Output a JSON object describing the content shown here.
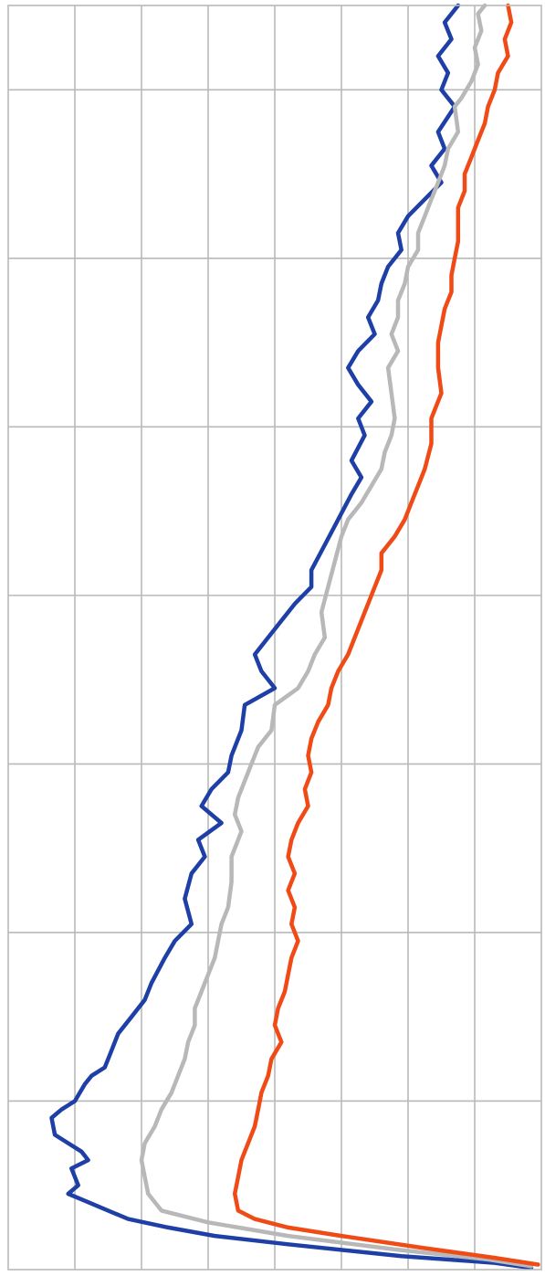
{
  "chart_data": {
    "type": "line",
    "orientation": "vertical-profile",
    "title": "",
    "xlabel": "",
    "ylabel": "",
    "grid": true,
    "legend": "none",
    "xlim": [
      0,
      8
    ],
    "ylim": [
      0,
      7.5
    ],
    "x_gridlines": 8,
    "y_gridlines": 7.5,
    "series": [
      {
        "color": "#1e3fa6",
        "points": [
          [
            6.75,
            0.0
          ],
          [
            6.55,
            0.1
          ],
          [
            6.65,
            0.2
          ],
          [
            6.45,
            0.3
          ],
          [
            6.6,
            0.4
          ],
          [
            6.5,
            0.5
          ],
          [
            6.7,
            0.6
          ],
          [
            6.45,
            0.75
          ],
          [
            6.55,
            0.85
          ],
          [
            6.35,
            0.95
          ],
          [
            6.5,
            1.05
          ],
          [
            6.25,
            1.15
          ],
          [
            6.0,
            1.25
          ],
          [
            5.85,
            1.35
          ],
          [
            5.9,
            1.45
          ],
          [
            5.7,
            1.55
          ],
          [
            5.6,
            1.65
          ],
          [
            5.55,
            1.75
          ],
          [
            5.4,
            1.85
          ],
          [
            5.5,
            1.95
          ],
          [
            5.25,
            2.05
          ],
          [
            5.1,
            2.15
          ],
          [
            5.25,
            2.25
          ],
          [
            5.45,
            2.35
          ],
          [
            5.25,
            2.45
          ],
          [
            5.35,
            2.55
          ],
          [
            5.15,
            2.7
          ],
          [
            5.3,
            2.8
          ],
          [
            5.15,
            2.9
          ],
          [
            4.95,
            3.05
          ],
          [
            4.75,
            3.2
          ],
          [
            4.55,
            3.35
          ],
          [
            4.55,
            3.45
          ],
          [
            4.3,
            3.55
          ],
          [
            4.1,
            3.65
          ],
          [
            3.9,
            3.75
          ],
          [
            3.7,
            3.85
          ],
          [
            3.8,
            3.95
          ],
          [
            4.0,
            4.05
          ],
          [
            3.55,
            4.15
          ],
          [
            3.5,
            4.3
          ],
          [
            3.35,
            4.45
          ],
          [
            3.3,
            4.55
          ],
          [
            3.05,
            4.65
          ],
          [
            2.9,
            4.75
          ],
          [
            3.2,
            4.85
          ],
          [
            2.85,
            4.95
          ],
          [
            2.95,
            5.05
          ],
          [
            2.75,
            5.15
          ],
          [
            2.65,
            5.3
          ],
          [
            2.75,
            5.45
          ],
          [
            2.5,
            5.55
          ],
          [
            2.35,
            5.65
          ],
          [
            2.15,
            5.8
          ],
          [
            2.05,
            5.9
          ],
          [
            1.85,
            6.0
          ],
          [
            1.65,
            6.1
          ],
          [
            1.55,
            6.2
          ],
          [
            1.45,
            6.3
          ],
          [
            1.25,
            6.35
          ],
          [
            1.15,
            6.4
          ],
          [
            1.0,
            6.5
          ],
          [
            0.8,
            6.55
          ],
          [
            0.65,
            6.6
          ],
          [
            0.7,
            6.7
          ],
          [
            0.9,
            6.75
          ],
          [
            1.1,
            6.8
          ],
          [
            1.2,
            6.85
          ],
          [
            0.95,
            6.9
          ],
          [
            1.05,
            7.0
          ],
          [
            0.9,
            7.05
          ],
          [
            1.2,
            7.1
          ],
          [
            1.5,
            7.15
          ],
          [
            1.8,
            7.2
          ],
          [
            2.4,
            7.25
          ],
          [
            3.1,
            7.3
          ],
          [
            4.2,
            7.35
          ],
          [
            5.9,
            7.42
          ],
          [
            7.3,
            7.46
          ],
          [
            7.85,
            7.49
          ]
        ]
      },
      {
        "color": "#b8b8b8",
        "points": [
          [
            7.15,
            0.0
          ],
          [
            7.05,
            0.05
          ],
          [
            7.1,
            0.15
          ],
          [
            7.0,
            0.25
          ],
          [
            7.05,
            0.35
          ],
          [
            6.95,
            0.45
          ],
          [
            6.8,
            0.55
          ],
          [
            6.7,
            0.6
          ],
          [
            6.75,
            0.75
          ],
          [
            6.6,
            0.85
          ],
          [
            6.55,
            0.95
          ],
          [
            6.45,
            1.05
          ],
          [
            6.35,
            1.15
          ],
          [
            6.25,
            1.25
          ],
          [
            6.15,
            1.35
          ],
          [
            6.15,
            1.45
          ],
          [
            6.0,
            1.55
          ],
          [
            5.95,
            1.65
          ],
          [
            5.85,
            1.75
          ],
          [
            5.85,
            1.85
          ],
          [
            5.75,
            1.95
          ],
          [
            5.85,
            2.05
          ],
          [
            5.7,
            2.15
          ],
          [
            5.75,
            2.3
          ],
          [
            5.8,
            2.45
          ],
          [
            5.75,
            2.55
          ],
          [
            5.65,
            2.65
          ],
          [
            5.6,
            2.75
          ],
          [
            5.45,
            2.85
          ],
          [
            5.3,
            2.95
          ],
          [
            5.1,
            3.05
          ],
          [
            5.0,
            3.15
          ],
          [
            4.9,
            3.3
          ],
          [
            4.8,
            3.45
          ],
          [
            4.7,
            3.6
          ],
          [
            4.75,
            3.75
          ],
          [
            4.6,
            3.85
          ],
          [
            4.5,
            3.95
          ],
          [
            4.35,
            4.05
          ],
          [
            4.0,
            4.15
          ],
          [
            3.95,
            4.3
          ],
          [
            3.75,
            4.4
          ],
          [
            3.65,
            4.5
          ],
          [
            3.55,
            4.6
          ],
          [
            3.45,
            4.7
          ],
          [
            3.4,
            4.8
          ],
          [
            3.5,
            4.9
          ],
          [
            3.35,
            5.05
          ],
          [
            3.35,
            5.2
          ],
          [
            3.3,
            5.35
          ],
          [
            3.2,
            5.45
          ],
          [
            3.15,
            5.55
          ],
          [
            3.1,
            5.65
          ],
          [
            3.0,
            5.75
          ],
          [
            2.9,
            5.85
          ],
          [
            2.8,
            5.95
          ],
          [
            2.8,
            6.05
          ],
          [
            2.7,
            6.15
          ],
          [
            2.65,
            6.25
          ],
          [
            2.55,
            6.35
          ],
          [
            2.45,
            6.45
          ],
          [
            2.3,
            6.55
          ],
          [
            2.2,
            6.65
          ],
          [
            2.05,
            6.75
          ],
          [
            2.0,
            6.85
          ],
          [
            2.05,
            6.95
          ],
          [
            2.1,
            7.05
          ],
          [
            2.3,
            7.15
          ],
          [
            3.0,
            7.22
          ],
          [
            4.2,
            7.3
          ],
          [
            5.8,
            7.38
          ],
          [
            7.2,
            7.44
          ],
          [
            7.85,
            7.48
          ]
        ]
      },
      {
        "color": "#f04a16",
        "points": [
          [
            7.5,
            0.0
          ],
          [
            7.55,
            0.1
          ],
          [
            7.45,
            0.2
          ],
          [
            7.5,
            0.3
          ],
          [
            7.35,
            0.4
          ],
          [
            7.3,
            0.5
          ],
          [
            7.2,
            0.6
          ],
          [
            7.15,
            0.7
          ],
          [
            7.05,
            0.8
          ],
          [
            6.95,
            0.9
          ],
          [
            6.85,
            1.0
          ],
          [
            6.85,
            1.1
          ],
          [
            6.75,
            1.2
          ],
          [
            6.75,
            1.3
          ],
          [
            6.75,
            1.4
          ],
          [
            6.7,
            1.5
          ],
          [
            6.65,
            1.6
          ],
          [
            6.65,
            1.7
          ],
          [
            6.55,
            1.8
          ],
          [
            6.5,
            1.9
          ],
          [
            6.45,
            2.0
          ],
          [
            6.45,
            2.15
          ],
          [
            6.5,
            2.3
          ],
          [
            6.35,
            2.45
          ],
          [
            6.35,
            2.6
          ],
          [
            6.25,
            2.75
          ],
          [
            6.15,
            2.85
          ],
          [
            6.05,
            2.95
          ],
          [
            5.95,
            3.05
          ],
          [
            5.8,
            3.15
          ],
          [
            5.6,
            3.25
          ],
          [
            5.6,
            3.35
          ],
          [
            5.5,
            3.45
          ],
          [
            5.4,
            3.55
          ],
          [
            5.3,
            3.65
          ],
          [
            5.2,
            3.75
          ],
          [
            5.1,
            3.85
          ],
          [
            4.95,
            3.95
          ],
          [
            4.85,
            4.05
          ],
          [
            4.8,
            4.15
          ],
          [
            4.65,
            4.25
          ],
          [
            4.55,
            4.35
          ],
          [
            4.5,
            4.45
          ],
          [
            4.55,
            4.55
          ],
          [
            4.45,
            4.65
          ],
          [
            4.5,
            4.75
          ],
          [
            4.35,
            4.85
          ],
          [
            4.25,
            4.95
          ],
          [
            4.2,
            5.05
          ],
          [
            4.3,
            5.15
          ],
          [
            4.2,
            5.25
          ],
          [
            4.3,
            5.35
          ],
          [
            4.25,
            5.45
          ],
          [
            4.35,
            5.55
          ],
          [
            4.25,
            5.65
          ],
          [
            4.2,
            5.75
          ],
          [
            4.15,
            5.85
          ],
          [
            4.05,
            5.95
          ],
          [
            4.0,
            6.05
          ],
          [
            4.1,
            6.15
          ],
          [
            3.95,
            6.25
          ],
          [
            3.9,
            6.35
          ],
          [
            3.8,
            6.45
          ],
          [
            3.75,
            6.55
          ],
          [
            3.7,
            6.65
          ],
          [
            3.6,
            6.75
          ],
          [
            3.5,
            6.85
          ],
          [
            3.45,
            6.95
          ],
          [
            3.4,
            7.05
          ],
          [
            3.45,
            7.15
          ],
          [
            3.7,
            7.2
          ],
          [
            4.2,
            7.25
          ],
          [
            5.0,
            7.3
          ],
          [
            6.2,
            7.37
          ],
          [
            7.3,
            7.43
          ],
          [
            7.95,
            7.47
          ]
        ]
      }
    ]
  }
}
